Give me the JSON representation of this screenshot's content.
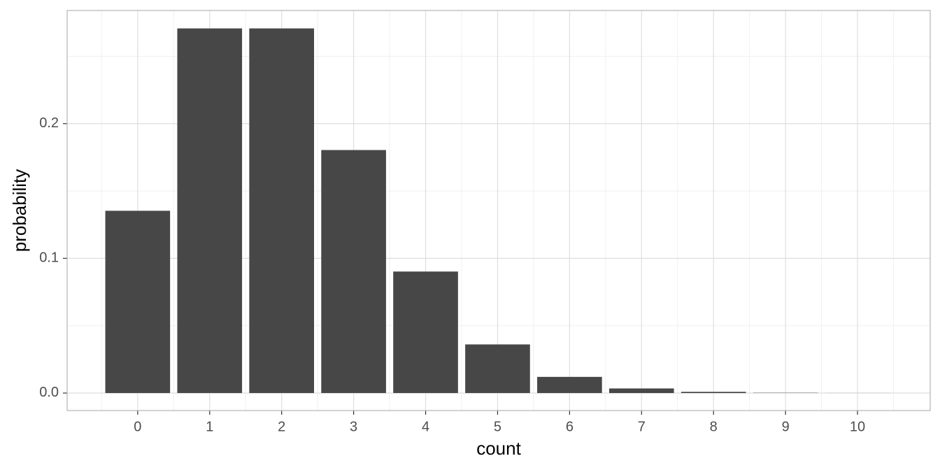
{
  "chart_data": {
    "type": "bar",
    "x": [
      0,
      1,
      2,
      3,
      4,
      5,
      6,
      7,
      8,
      9,
      10
    ],
    "values": [
      0.1353,
      0.2707,
      0.2707,
      0.1804,
      0.0902,
      0.0361,
      0.012,
      0.0034,
      0.0009,
      0.0002,
      4e-05
    ],
    "color": "#474747",
    "xlabel": "count",
    "ylabel": "probability",
    "xlim": [
      -0.98,
      11.01
    ],
    "xticks": [
      0,
      1,
      2,
      3,
      4,
      5,
      6,
      7,
      8,
      9,
      10
    ],
    "ylim": [
      -0.013,
      0.284
    ],
    "yticks": [
      {
        "value": 0,
        "label": "0.0"
      },
      {
        "value": 0.1,
        "label": "0.1"
      },
      {
        "value": 0.2,
        "label": "0.2"
      }
    ],
    "grid": true
  }
}
